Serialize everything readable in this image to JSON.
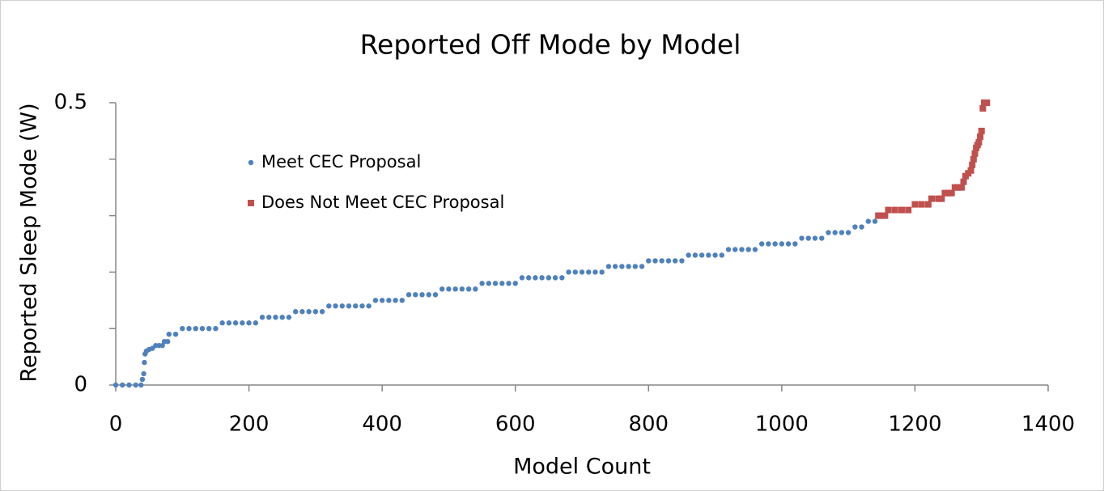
{
  "chart_data": {
    "type": "scatter",
    "title": "Reported Off Mode by Model",
    "xlabel": "Model Count",
    "ylabel": "Reported Sleep Mode (W)",
    "xlim": [
      0,
      1400
    ],
    "xticks": [
      0,
      200,
      400,
      600,
      800,
      1000,
      1200,
      1400
    ],
    "ylim": [
      0,
      0.5
    ],
    "yticks": [
      0,
      0.5
    ],
    "yticks_minor": [
      0.1,
      0.2,
      0.3,
      0.4
    ],
    "grid": false,
    "legend": "upper left",
    "series": [
      {
        "name": "Meet CEC Proposal",
        "color": "#4f81bd",
        "marker": "circle",
        "x": [
          0,
          10,
          20,
          30,
          38,
          40,
          42,
          43,
          44,
          46,
          50,
          55,
          60,
          65,
          70,
          73,
          78,
          80,
          90,
          100,
          110,
          120,
          130,
          140,
          150,
          160,
          170,
          180,
          190,
          200,
          210,
          220,
          230,
          240,
          250,
          260,
          270,
          280,
          290,
          300,
          310,
          320,
          330,
          340,
          350,
          360,
          370,
          380,
          390,
          400,
          410,
          420,
          430,
          440,
          450,
          460,
          470,
          480,
          490,
          500,
          510,
          520,
          530,
          540,
          550,
          560,
          570,
          580,
          590,
          600,
          610,
          620,
          630,
          640,
          650,
          660,
          670,
          680,
          690,
          700,
          710,
          720,
          730,
          740,
          750,
          760,
          770,
          780,
          790,
          800,
          810,
          820,
          830,
          840,
          850,
          860,
          870,
          880,
          890,
          900,
          910,
          920,
          930,
          940,
          950,
          960,
          970,
          980,
          990,
          1000,
          1010,
          1020,
          1030,
          1040,
          1050,
          1060,
          1070,
          1080,
          1090,
          1100,
          1110,
          1120,
          1130,
          1140
        ],
        "values": [
          0,
          0,
          0,
          0,
          0,
          0.01,
          0.02,
          0.04,
          0.055,
          0.06,
          0.063,
          0.065,
          0.07,
          0.07,
          0.07,
          0.077,
          0.077,
          0.09,
          0.09,
          0.1,
          0.1,
          0.1,
          0.1,
          0.1,
          0.1,
          0.11,
          0.11,
          0.11,
          0.11,
          0.11,
          0.11,
          0.12,
          0.12,
          0.12,
          0.12,
          0.12,
          0.13,
          0.13,
          0.13,
          0.13,
          0.13,
          0.14,
          0.14,
          0.14,
          0.14,
          0.14,
          0.14,
          0.14,
          0.15,
          0.15,
          0.15,
          0.15,
          0.15,
          0.16,
          0.16,
          0.16,
          0.16,
          0.16,
          0.17,
          0.17,
          0.17,
          0.17,
          0.17,
          0.17,
          0.18,
          0.18,
          0.18,
          0.18,
          0.18,
          0.18,
          0.19,
          0.19,
          0.19,
          0.19,
          0.19,
          0.19,
          0.19,
          0.2,
          0.2,
          0.2,
          0.2,
          0.2,
          0.2,
          0.21,
          0.21,
          0.21,
          0.21,
          0.21,
          0.21,
          0.22,
          0.22,
          0.22,
          0.22,
          0.22,
          0.22,
          0.23,
          0.23,
          0.23,
          0.23,
          0.23,
          0.23,
          0.24,
          0.24,
          0.24,
          0.24,
          0.24,
          0.25,
          0.25,
          0.25,
          0.25,
          0.25,
          0.25,
          0.26,
          0.26,
          0.26,
          0.26,
          0.27,
          0.27,
          0.27,
          0.27,
          0.28,
          0.28,
          0.29,
          0.29
        ]
      },
      {
        "name": "Does Not Meet CEC Proposal",
        "color": "#c0504d",
        "marker": "square",
        "x": [
          1145,
          1150,
          1155,
          1160,
          1170,
          1180,
          1190,
          1200,
          1210,
          1220,
          1225,
          1235,
          1240,
          1245,
          1250,
          1255,
          1260,
          1265,
          1270,
          1273,
          1276,
          1280,
          1284,
          1286,
          1288,
          1290,
          1292,
          1294,
          1296,
          1298,
          1300,
          1302,
          1304,
          1306,
          1308
        ],
        "values": [
          0.3,
          0.3,
          0.3,
          0.31,
          0.31,
          0.31,
          0.31,
          0.32,
          0.32,
          0.32,
          0.33,
          0.33,
          0.33,
          0.34,
          0.34,
          0.34,
          0.35,
          0.35,
          0.35,
          0.36,
          0.37,
          0.375,
          0.38,
          0.39,
          0.4,
          0.41,
          0.42,
          0.425,
          0.43,
          0.44,
          0.45,
          0.49,
          0.5,
          0.5,
          0.5
        ]
      }
    ]
  }
}
